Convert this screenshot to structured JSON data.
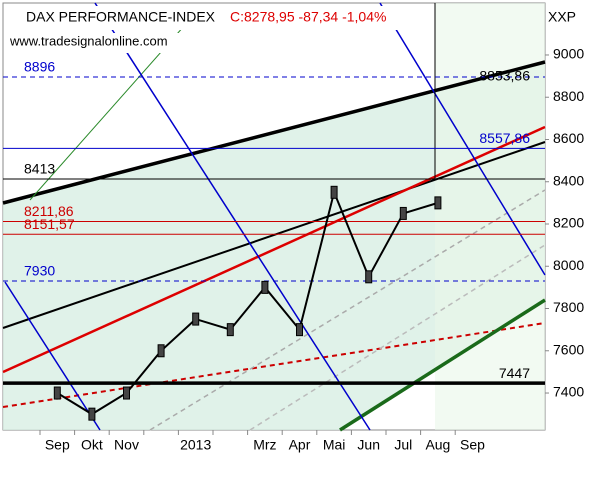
{
  "chart_data": {
    "type": "line",
    "title": "DAX PERFORMANCE-INDEX",
    "subtitle": "C:8278,95 -87,34 -1,04%",
    "source": "www.tradesignalonline.com",
    "axis_label": "XXP",
    "categories": [
      "Sep",
      "Okt",
      "Nov",
      null,
      "2013",
      null,
      "Mrz",
      "Apr",
      "Mai",
      "Jun",
      "Jul",
      "Aug",
      "Sep"
    ],
    "series": [
      {
        "name": "DAX",
        "color": "#000000",
        "values": [
          7400,
          7300,
          7400,
          7600,
          7750,
          7700,
          7900,
          7700,
          8350,
          7950,
          8250,
          8300,
          null
        ]
      }
    ],
    "ylim": [
      7225,
      9246
    ],
    "yticks": [
      7400,
      7600,
      7800,
      8000,
      8200,
      8400,
      8600,
      8800,
      9000
    ],
    "levels": [
      {
        "value": 8896,
        "color": "#0000cc",
        "style": "dashed"
      },
      {
        "value": 8853.86,
        "label": "8853,86",
        "color": "#000000",
        "style": "none"
      },
      {
        "value": 8557.86,
        "label": "8557,86",
        "color": "#0000cc",
        "style": "solid"
      },
      {
        "value": 8413,
        "color": "#000000",
        "style": "solid"
      },
      {
        "value": 8211.86,
        "label": "8211,86",
        "color": "#cc0000",
        "style": "solid"
      },
      {
        "value": 8151.57,
        "label": "8151,57",
        "color": "#cc0000",
        "style": "solid"
      },
      {
        "value": 7930,
        "color": "#0000cc",
        "style": "dashed"
      },
      {
        "value": 7447,
        "color": "#000000",
        "style": "thick"
      }
    ]
  }
}
